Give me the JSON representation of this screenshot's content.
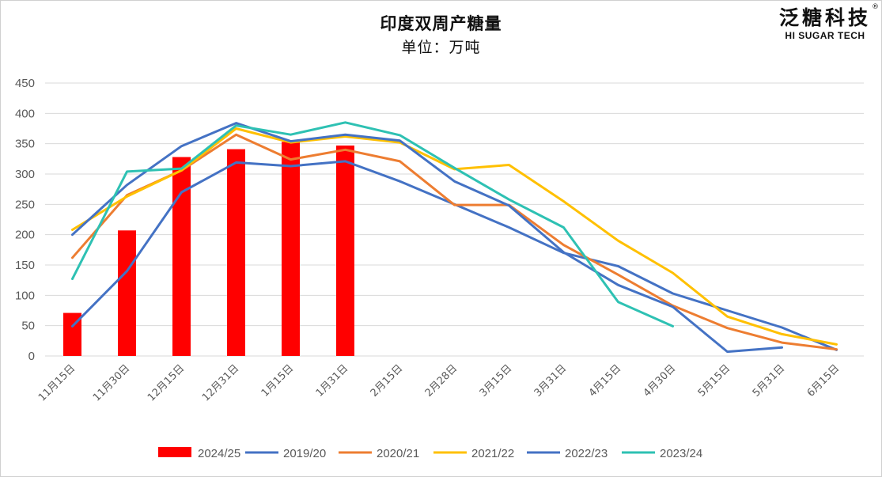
{
  "chart_data": {
    "type": "bar+line",
    "title": "印度双周产糖量",
    "subtitle": "单位：万吨",
    "brand": {
      "name_cn": "泛糖科技",
      "name_en": "HI SUGAR TECH",
      "mark": "®"
    },
    "categories": [
      "11月15日",
      "11月30日",
      "12月15日",
      "12月31日",
      "1月15日",
      "1月31日",
      "2月15日",
      "2月28日",
      "3月15日",
      "3月31日",
      "4月15日",
      "4月30日",
      "5月15日",
      "5月31日",
      "6月15日"
    ],
    "ylim": [
      0,
      450
    ],
    "yticks": [
      0,
      50,
      100,
      150,
      200,
      250,
      300,
      350,
      400,
      450
    ],
    "grid": true,
    "legend_position": "bottom",
    "series": [
      {
        "name": "2024/25",
        "type": "bar",
        "color": "#FF0000",
        "values": [
          71,
          207,
          328,
          341,
          353,
          347,
          null,
          null,
          null,
          null,
          null,
          null,
          null,
          null,
          null
        ]
      },
      {
        "name": "2019/20",
        "type": "line",
        "color": "#4472C4",
        "values": [
          49,
          140,
          270,
          319,
          313,
          321,
          288,
          250,
          212,
          170,
          148,
          103,
          75,
          47,
          10
        ]
      },
      {
        "name": "2020/21",
        "type": "line",
        "color": "#ED7D31",
        "values": [
          162,
          265,
          306,
          365,
          324,
          340,
          321,
          249,
          249,
          183,
          134,
          83,
          46,
          22,
          11
        ]
      },
      {
        "name": "2021/22",
        "type": "line",
        "color": "#FFC000",
        "values": [
          208,
          263,
          306,
          375,
          352,
          362,
          352,
          308,
          315,
          255,
          190,
          137,
          65,
          36,
          19
        ]
      },
      {
        "name": "2022/23",
        "type": "line",
        "color": "#4472C4",
        "values": [
          200,
          282,
          346,
          384,
          354,
          365,
          355,
          288,
          248,
          171,
          117,
          81,
          7,
          14,
          null
        ]
      },
      {
        "name": "2023/24",
        "type": "line",
        "color": "#2EC1B3",
        "values": [
          127,
          304,
          309,
          380,
          365,
          385,
          364,
          310,
          258,
          212,
          89,
          49,
          null,
          null,
          null
        ]
      }
    ]
  }
}
